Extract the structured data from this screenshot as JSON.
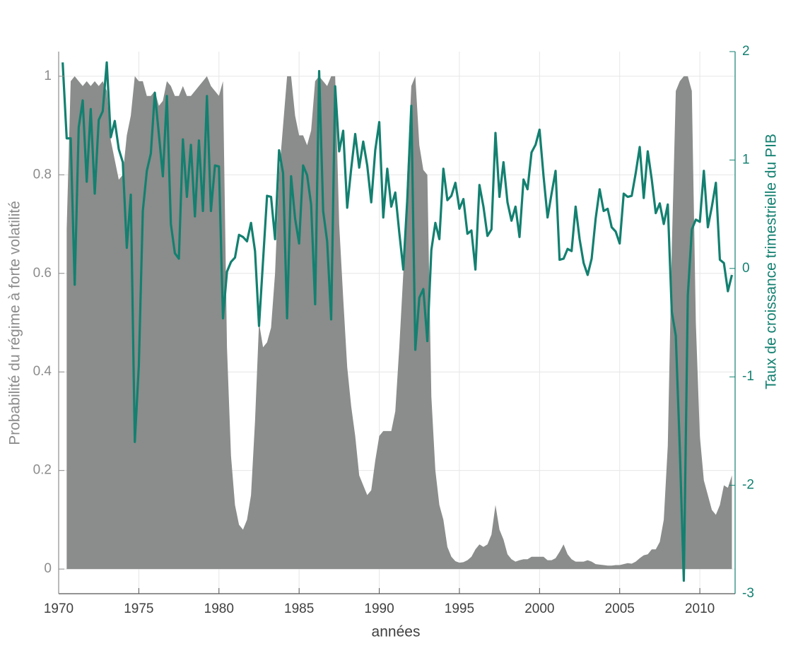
{
  "chart_data": {
    "type": "area-line",
    "x_label": "années",
    "y_label": "Probabilité du régime à forte volatilité",
    "y2_label": "Taux de croissance trimestrielle du PIB",
    "xlim": [
      1970,
      2012.2
    ],
    "ylim": [
      -0.05,
      1.05
    ],
    "y2lim": [
      -3,
      2
    ],
    "xticks": [
      1970,
      1975,
      1980,
      1985,
      1990,
      1995,
      2000,
      2005,
      2010
    ],
    "yticks": [
      0,
      0.2,
      0.4,
      0.6,
      0.8,
      1
    ],
    "y2ticks": [
      -3,
      -2,
      -1,
      0,
      1,
      2
    ],
    "grid": true,
    "x": [
      1970.25,
      1970.5,
      1970.75,
      1971,
      1971.25,
      1971.5,
      1971.75,
      1972,
      1972.25,
      1972.5,
      1972.75,
      1973,
      1973.25,
      1973.5,
      1973.75,
      1974,
      1974.25,
      1974.5,
      1974.75,
      1975,
      1975.25,
      1975.5,
      1975.75,
      1976,
      1976.25,
      1976.5,
      1976.75,
      1977,
      1977.25,
      1977.5,
      1977.75,
      1978,
      1978.25,
      1978.5,
      1978.75,
      1979,
      1979.25,
      1979.5,
      1979.75,
      1980,
      1980.25,
      1980.5,
      1980.75,
      1981,
      1981.25,
      1981.5,
      1981.75,
      1982,
      1982.25,
      1982.5,
      1982.75,
      1983,
      1983.25,
      1983.5,
      1983.75,
      1984,
      1984.25,
      1984.5,
      1984.75,
      1985,
      1985.25,
      1985.5,
      1985.75,
      1986,
      1986.25,
      1986.5,
      1986.75,
      1987,
      1987.25,
      1987.5,
      1987.75,
      1988,
      1988.25,
      1988.5,
      1988.75,
      1989,
      1989.25,
      1989.5,
      1989.75,
      1990,
      1990.25,
      1990.5,
      1990.75,
      1991,
      1991.25,
      1991.5,
      1991.75,
      1992,
      1992.25,
      1992.5,
      1992.75,
      1993,
      1993.25,
      1993.5,
      1993.75,
      1994,
      1994.25,
      1994.5,
      1994.75,
      1995,
      1995.25,
      1995.5,
      1995.75,
      1996,
      1996.25,
      1996.5,
      1996.75,
      1997,
      1997.25,
      1997.5,
      1997.75,
      1998,
      1998.25,
      1998.5,
      1998.75,
      1999,
      1999.25,
      1999.5,
      1999.75,
      2000,
      2000.25,
      2000.5,
      2000.75,
      2001,
      2001.25,
      2001.5,
      2001.75,
      2002,
      2002.25,
      2002.5,
      2002.75,
      2003,
      2003.25,
      2003.5,
      2003.75,
      2004,
      2004.25,
      2004.5,
      2004.75,
      2005,
      2005.25,
      2005.5,
      2005.75,
      2006,
      2006.25,
      2006.5,
      2006.75,
      2007,
      2007.25,
      2007.5,
      2007.75,
      2008,
      2008.25,
      2008.5,
      2008.75,
      2009,
      2009.25,
      2009.5,
      2009.75,
      2010,
      2010.25,
      2010.5,
      2010.75,
      2011,
      2011.25,
      2011.5,
      2011.75,
      2012
    ],
    "series": [
      {
        "kind": "area",
        "color": "#8a8d8b",
        "values": [
          null,
          0.69,
          0.99,
          1.0,
          0.99,
          0.98,
          0.99,
          0.98,
          0.99,
          0.98,
          0.99,
          0.97,
          0.87,
          0.83,
          0.79,
          0.8,
          0.88,
          0.92,
          1.0,
          0.99,
          0.99,
          0.96,
          0.96,
          0.97,
          0.94,
          0.95,
          0.99,
          0.98,
          0.96,
          0.96,
          0.98,
          0.96,
          0.96,
          0.97,
          0.98,
          0.99,
          1.0,
          0.98,
          0.97,
          0.96,
          0.99,
          0.45,
          0.23,
          0.13,
          0.09,
          0.08,
          0.1,
          0.15,
          0.3,
          0.5,
          0.45,
          0.46,
          0.49,
          0.6,
          0.8,
          0.9,
          1.0,
          1.0,
          0.92,
          0.88,
          0.88,
          0.86,
          0.89,
          0.99,
          1.0,
          0.99,
          0.98,
          1.0,
          1.0,
          0.7,
          0.55,
          0.41,
          0.33,
          0.27,
          0.19,
          0.17,
          0.15,
          0.16,
          0.22,
          0.27,
          0.28,
          0.28,
          0.28,
          0.32,
          0.45,
          0.6,
          0.8,
          0.98,
          1.0,
          0.86,
          0.81,
          0.8,
          0.35,
          0.2,
          0.13,
          0.1,
          0.045,
          0.025,
          0.016,
          0.013,
          0.014,
          0.018,
          0.025,
          0.04,
          0.05,
          0.045,
          0.05,
          0.07,
          0.13,
          0.08,
          0.06,
          0.03,
          0.02,
          0.015,
          0.018,
          0.02,
          0.02,
          0.025,
          0.025,
          0.025,
          0.025,
          0.018,
          0.018,
          0.022,
          0.035,
          0.05,
          0.03,
          0.02,
          0.015,
          0.015,
          0.015,
          0.018,
          0.015,
          0.01,
          0.009,
          0.008,
          0.007,
          0.007,
          0.008,
          0.008,
          0.01,
          0.012,
          0.011,
          0.015,
          0.022,
          0.028,
          0.03,
          0.04,
          0.04,
          0.055,
          0.1,
          0.25,
          0.65,
          0.97,
          0.99,
          1.0,
          1.0,
          0.97,
          0.5,
          0.27,
          0.18,
          0.15,
          0.12,
          0.11,
          0.13,
          0.17,
          0.165,
          0.19
        ]
      },
      {
        "kind": "line",
        "axis": "y2",
        "color": "#138070",
        "values": [
          1.9,
          1.2,
          1.2,
          -0.15,
          1.3,
          1.55,
          0.8,
          1.47,
          0.69,
          1.37,
          1.45,
          1.9,
          1.21,
          1.36,
          1.1,
          0.98,
          0.19,
          0.68,
          -1.6,
          -0.9,
          0.53,
          0.9,
          1.06,
          1.62,
          1.24,
          0.85,
          1.59,
          0.41,
          0.14,
          0.09,
          1.19,
          0.66,
          1.14,
          0.48,
          1.18,
          0.53,
          1.59,
          0.53,
          0.95,
          0.94,
          -0.46,
          -0.03,
          0.06,
          0.1,
          0.31,
          0.29,
          0.25,
          0.42,
          0.16,
          -0.53,
          0.07,
          0.67,
          0.66,
          0.27,
          1.09,
          0.88,
          -0.46,
          0.85,
          0.46,
          0.23,
          0.95,
          0.86,
          0.59,
          -0.33,
          1.82,
          0.53,
          0.25,
          -0.47,
          1.68,
          1.08,
          1.27,
          0.56,
          0.92,
          1.24,
          0.93,
          1.17,
          0.95,
          0.61,
          1.09,
          1.35,
          0.47,
          0.92,
          0.57,
          0.7,
          0.33,
          -0.01,
          0.64,
          1.5,
          -0.75,
          -0.27,
          -0.19,
          -0.67,
          0.17,
          0.42,
          0.27,
          0.92,
          0.63,
          0.67,
          0.79,
          0.55,
          0.64,
          0.32,
          0.35,
          -0.01,
          0.77,
          0.57,
          0.3,
          0.36,
          1.25,
          0.66,
          0.98,
          0.61,
          0.44,
          0.57,
          0.29,
          0.82,
          0.73,
          1.07,
          1.14,
          1.28,
          0.85,
          0.47,
          0.69,
          0.9,
          0.08,
          0.09,
          0.18,
          0.16,
          0.57,
          0.27,
          0.05,
          -0.06,
          0.09,
          0.46,
          0.73,
          0.53,
          0.55,
          0.38,
          0.34,
          0.23,
          0.69,
          0.66,
          0.67,
          0.88,
          1.12,
          0.65,
          1.08,
          0.82,
          0.51,
          0.6,
          0.41,
          0.59,
          -0.4,
          -0.62,
          -1.66,
          -2.88,
          -0.25,
          0.36,
          0.45,
          0.43,
          0.9,
          0.38,
          0.57,
          0.79,
          0.08,
          0.05,
          -0.21,
          -0.06
        ]
      }
    ]
  }
}
